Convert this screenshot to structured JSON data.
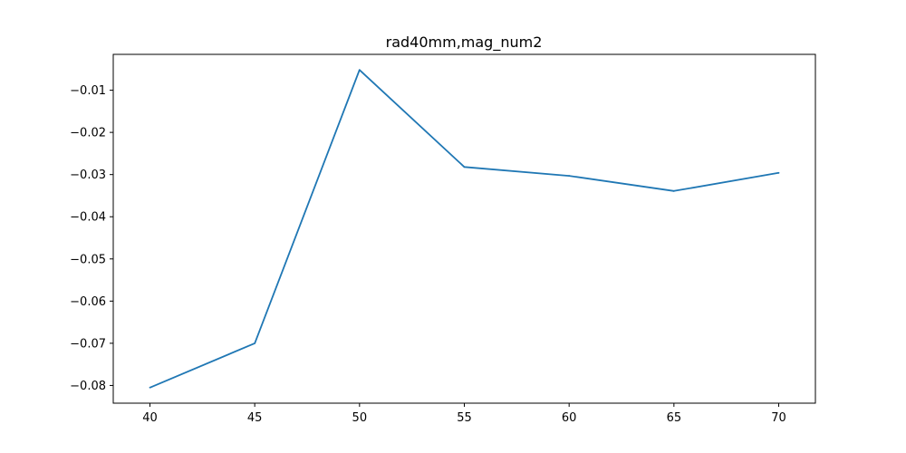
{
  "chart_data": {
    "type": "line",
    "title": "rad40mm,mag_num2",
    "xlabel": "",
    "ylabel": "",
    "x": [
      40,
      45,
      50,
      55,
      60,
      65,
      70
    ],
    "series": [
      {
        "values": [
          -0.0805,
          -0.07,
          -0.0052,
          -0.0282,
          -0.0303,
          -0.0339,
          -0.0296
        ],
        "color": "#1f77b4"
      }
    ],
    "xlim": [
      38.25,
      71.75
    ],
    "ylim": [
      -0.0842,
      -0.0015
    ],
    "xticks": [
      40,
      45,
      50,
      55,
      60,
      65,
      70
    ],
    "xtick_labels": [
      "40",
      "45",
      "50",
      "55",
      "60",
      "65",
      "70"
    ],
    "yticks": [
      -0.08,
      -0.07,
      -0.06,
      -0.05,
      -0.04,
      -0.03,
      -0.02,
      -0.01
    ],
    "ytick_labels": [
      "−0.08",
      "−0.07",
      "−0.06",
      "−0.05",
      "−0.04",
      "−0.03",
      "−0.02",
      "−0.01"
    ],
    "grid": false,
    "legend": "none"
  }
}
